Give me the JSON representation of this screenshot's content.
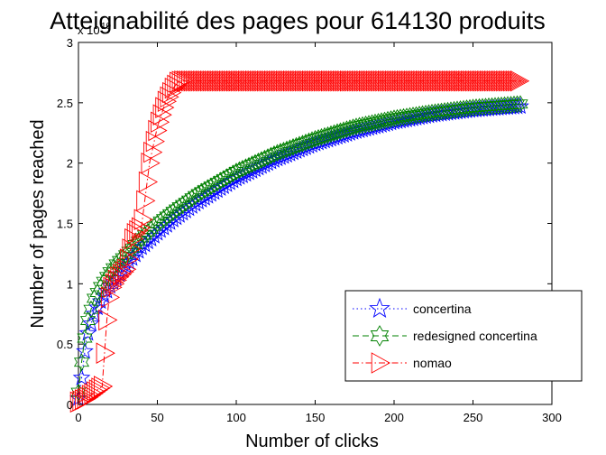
{
  "chart_data": {
    "type": "line",
    "title": "Atteignabilité des pages pour 614130 produits",
    "xlabel": "Number of clicks",
    "ylabel": "Number of pages reached",
    "y_exponent_label": "x 10",
    "y_exponent_value": "10",
    "xlim": [
      0,
      300
    ],
    "ylim": [
      0,
      3
    ],
    "xticks": [
      0,
      50,
      100,
      150,
      200,
      250,
      300
    ],
    "yticks": [
      0,
      0.5,
      1,
      1.5,
      2,
      2.5,
      3
    ],
    "xtick_labels": [
      "0",
      "50",
      "100",
      "150",
      "200",
      "250",
      "300"
    ],
    "ytick_labels": [
      "0",
      "0.5",
      "1",
      "1.5",
      "2",
      "2.5",
      "3"
    ],
    "grid": false,
    "legend_position": "bottom-right",
    "series": [
      {
        "name": "concertina",
        "color": "#0000ff",
        "marker": "pentagram",
        "linestyle": "dotted",
        "x": [
          0,
          2,
          5,
          10,
          15,
          20,
          25,
          30,
          40,
          50,
          60,
          75,
          100,
          125,
          150,
          175,
          200,
          225,
          250,
          280
        ],
        "y": [
          0.05,
          0.22,
          0.55,
          0.75,
          0.88,
          0.98,
          1.06,
          1.15,
          1.3,
          1.42,
          1.53,
          1.67,
          1.87,
          2.03,
          2.16,
          2.26,
          2.34,
          2.4,
          2.44,
          2.47
        ]
      },
      {
        "name": "redesigned concertina",
        "color": "#008000",
        "marker": "hexagram",
        "linestyle": "dashed",
        "x": [
          0,
          2,
          5,
          10,
          15,
          20,
          25,
          30,
          40,
          50,
          60,
          75,
          100,
          125,
          150,
          175,
          200,
          225,
          250,
          280
        ],
        "y": [
          0.1,
          0.35,
          0.65,
          0.88,
          1.0,
          1.1,
          1.18,
          1.24,
          1.38,
          1.5,
          1.6,
          1.74,
          1.93,
          2.08,
          2.2,
          2.3,
          2.37,
          2.42,
          2.46,
          2.49
        ]
      },
      {
        "name": "nomao",
        "color": "#ff0000",
        "marker": "triangle-right",
        "linestyle": "dashdot",
        "x": [
          0,
          5,
          10,
          15,
          18,
          20,
          25,
          30,
          35,
          40,
          45,
          50,
          55,
          60,
          63,
          65,
          100,
          150,
          200,
          250,
          280
        ],
        "y": [
          0.02,
          0.05,
          0.1,
          0.15,
          0.7,
          0.95,
          1.05,
          1.12,
          1.4,
          1.48,
          2.0,
          2.3,
          2.5,
          2.62,
          2.67,
          2.68,
          2.68,
          2.68,
          2.68,
          2.68,
          2.68
        ]
      }
    ]
  }
}
